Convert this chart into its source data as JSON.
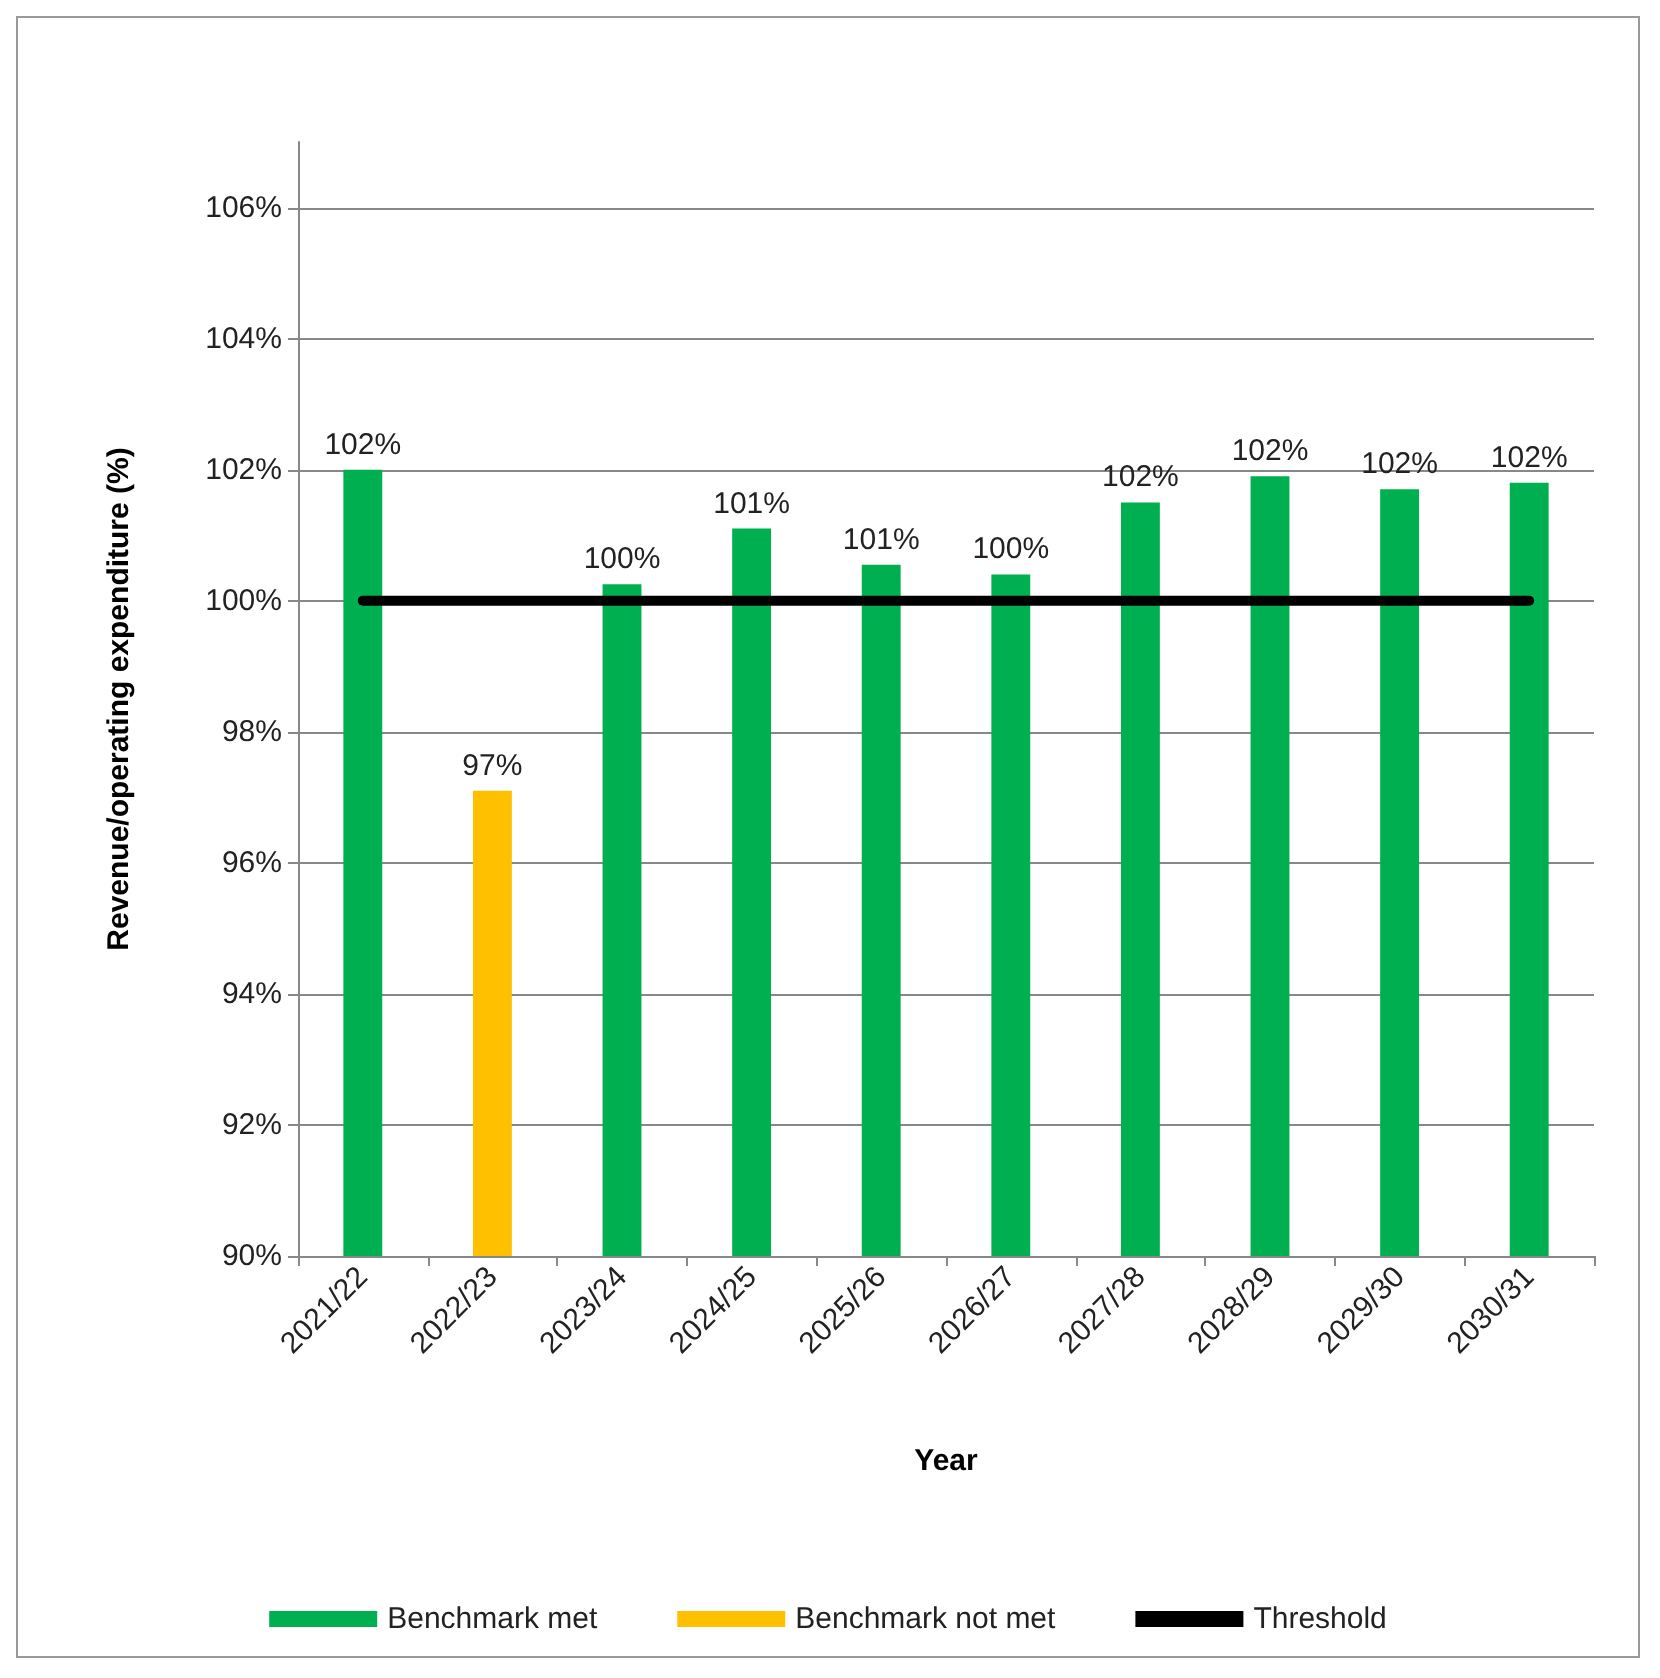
{
  "chart_data": {
    "type": "bar",
    "xlabel": "Year",
    "ylabel": "Revenue/operating expenditure (%)",
    "categories": [
      "2021/22",
      "2022/23",
      "2023/24",
      "2024/25",
      "2025/26",
      "2026/27",
      "2027/28",
      "2028/29",
      "2029/30",
      "2030/31"
    ],
    "series": [
      {
        "name": "Benchmark met",
        "color": "#00b050",
        "values": [
          102.0,
          null,
          100.25,
          101.1,
          100.55,
          100.4,
          101.5,
          101.9,
          101.7,
          101.8
        ],
        "value_labels": [
          "102%",
          null,
          "100%",
          "101%",
          "101%",
          "100%",
          "102%",
          "102%",
          "102%",
          "102%"
        ]
      },
      {
        "name": "Benchmark not met",
        "color": "#ffc000",
        "values": [
          null,
          97.1,
          null,
          null,
          null,
          null,
          null,
          null,
          null,
          null
        ],
        "value_labels": [
          null,
          "97%",
          null,
          null,
          null,
          null,
          null,
          null,
          null,
          null
        ]
      },
      {
        "name": "Threshold",
        "type": "line",
        "color": "#000000",
        "marker": "none",
        "values": [
          100,
          100,
          100,
          100,
          100,
          100,
          100,
          100,
          100,
          100
        ]
      }
    ],
    "ylim": [
      90,
      107
    ],
    "yticks": [
      {
        "value": 90,
        "label": "90%"
      },
      {
        "value": 92,
        "label": "92%"
      },
      {
        "value": 94,
        "label": "94%"
      },
      {
        "value": 96,
        "label": "96%"
      },
      {
        "value": 98,
        "label": "98%"
      },
      {
        "value": 100,
        "label": "100%"
      },
      {
        "value": 102,
        "label": "102%"
      },
      {
        "value": 104,
        "label": "104%"
      },
      {
        "value": 106,
        "label": "106%"
      }
    ],
    "grid": "y",
    "legend": "bottom"
  }
}
